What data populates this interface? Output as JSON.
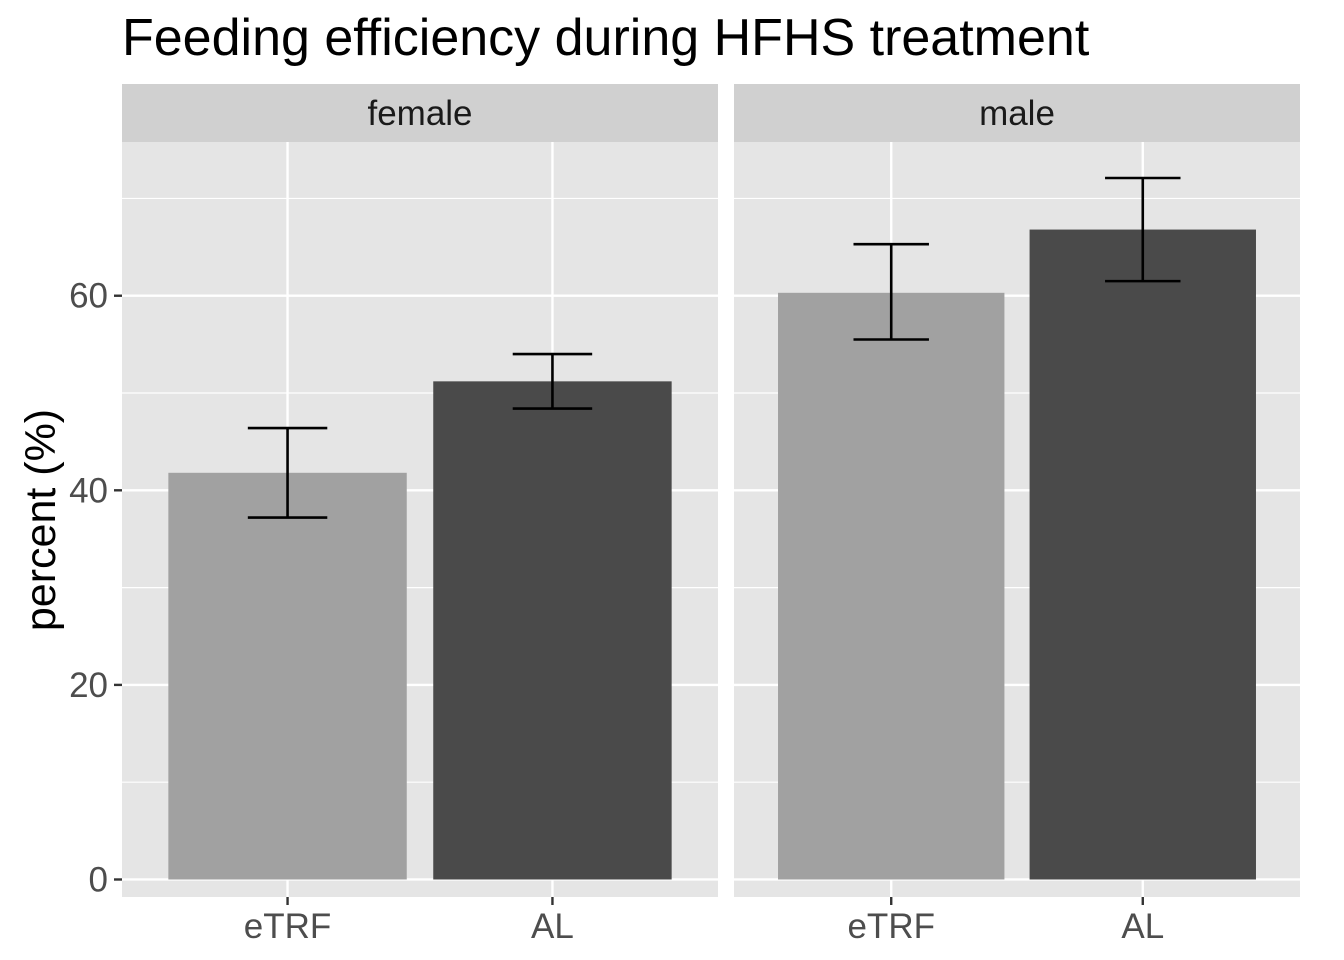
{
  "chart_data": {
    "type": "bar",
    "title": "Feeding efficiency during HFHS treatment",
    "xlabel": "",
    "ylabel": "percent (%)",
    "ylim": [
      -1.8,
      75.8
    ],
    "y_ticks": [
      0,
      20,
      40,
      60
    ],
    "grid": true,
    "categories": [
      "eTRF",
      "AL"
    ],
    "category_colors": [
      "#a1a1a1",
      "#4a4a4a"
    ],
    "error_bar_color": "#000000",
    "panels": [
      {
        "label": "female",
        "values": [
          41.8,
          51.2
        ],
        "error_low": [
          37.2,
          48.4
        ],
        "error_high": [
          46.4,
          54.0
        ]
      },
      {
        "label": "male",
        "values": [
          60.3,
          66.8
        ],
        "error_low": [
          55.5,
          61.5
        ],
        "error_high": [
          65.3,
          72.1
        ]
      }
    ]
  },
  "colors": {
    "panel_background": "#e5e5e5",
    "strip_background": "#d0d0d0",
    "grid_line": "#ffffff",
    "tick_mark": "#333333"
  }
}
